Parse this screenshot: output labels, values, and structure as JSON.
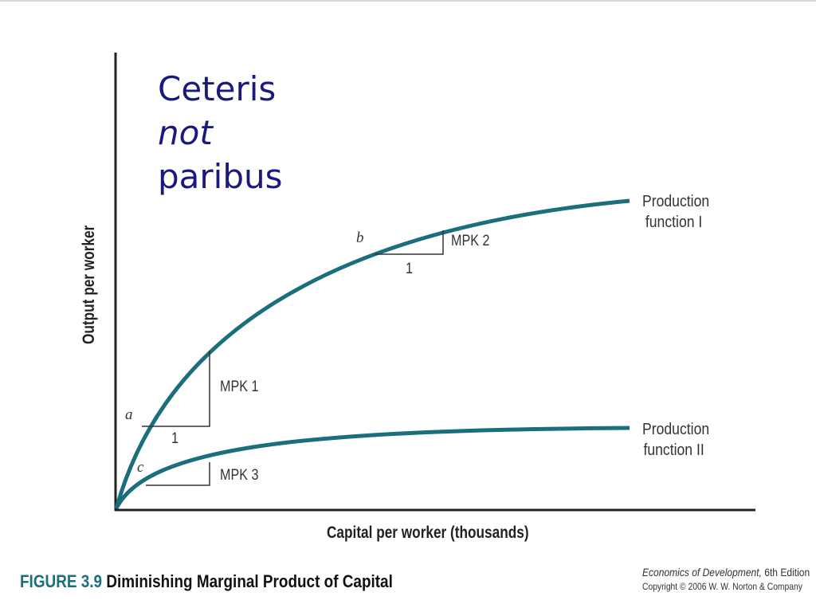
{
  "slide": {
    "title_line1": "Ceteris",
    "title_line2": "not",
    "title_line3": "paribus"
  },
  "chart_data": {
    "type": "line",
    "title": "",
    "xlabel": "Capital per worker (thousands)",
    "ylabel": "Output per worker",
    "series": [
      {
        "name_line1": "Production",
        "name_line2": "function I",
        "color": "#1b6e7d"
      },
      {
        "name_line1": "Production",
        "name_line2": "function II",
        "color": "#1b6e7d"
      }
    ],
    "annotations": {
      "point_a": "a",
      "point_b": "b",
      "point_c": "c",
      "mpk1": "MPK 1",
      "mpk2": "MPK 2",
      "mpk3": "MPK 3",
      "run_1": "1",
      "run_2": "1"
    }
  },
  "figure": {
    "label": "FIGURE",
    "number": "3.9",
    "title": "Diminishing Marginal Product of Capital"
  },
  "credit": {
    "book_title": "Economics of Development,",
    "edition": "6th Edition",
    "copyright": "Copyright © 2006 W. W. Norton & Company"
  },
  "colors": {
    "curve": "#1b6e7d",
    "title_text": "#1a1a7e",
    "figure_label": "#1b6e7d"
  }
}
